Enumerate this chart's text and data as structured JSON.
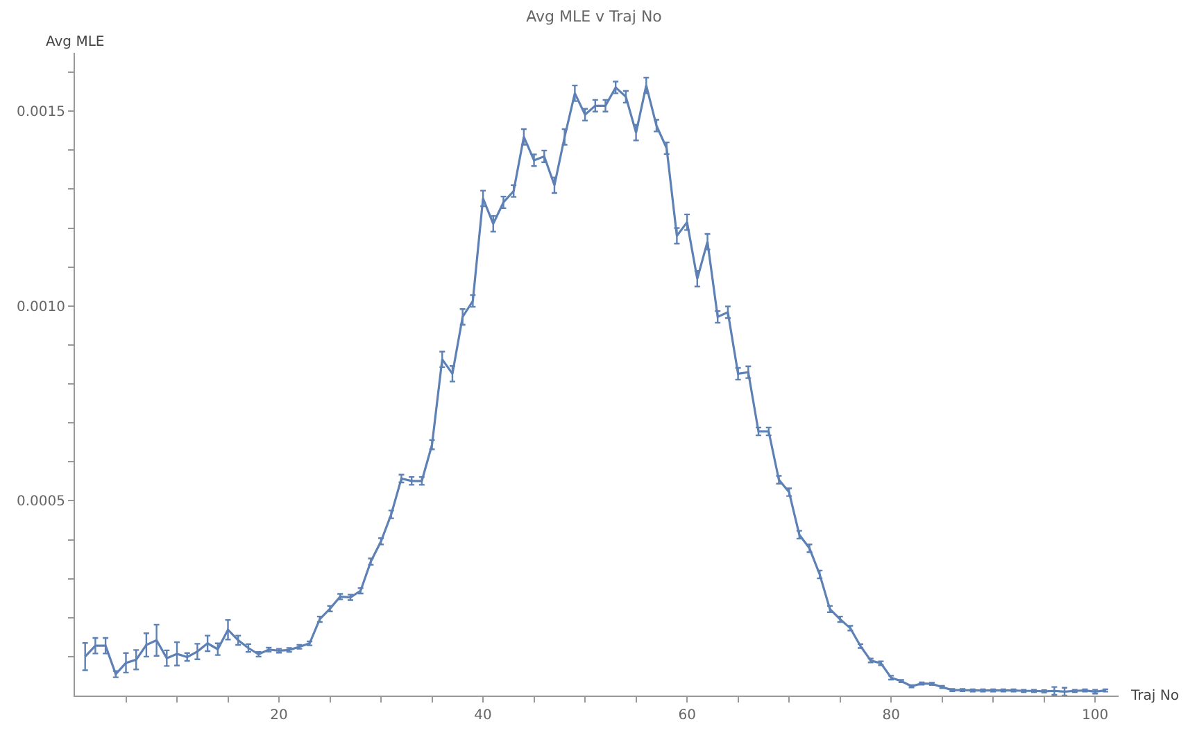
{
  "chart_data": {
    "type": "line",
    "title": "Avg MLE v Traj No",
    "xlabel": "Traj No",
    "ylabel": "Avg MLE",
    "x": [
      1,
      2,
      3,
      4,
      5,
      6,
      7,
      8,
      9,
      10,
      11,
      12,
      13,
      14,
      15,
      16,
      17,
      18,
      19,
      20,
      21,
      22,
      23,
      24,
      25,
      26,
      27,
      28,
      29,
      30,
      31,
      32,
      33,
      34,
      35,
      36,
      37,
      38,
      39,
      40,
      41,
      42,
      43,
      44,
      45,
      46,
      47,
      48,
      49,
      50,
      51,
      52,
      53,
      54,
      55,
      56,
      57,
      58,
      59,
      60,
      61,
      62,
      63,
      64,
      65,
      66,
      67,
      68,
      69,
      70,
      71,
      72,
      73,
      74,
      75,
      76,
      77,
      78,
      79,
      80,
      81,
      82,
      83,
      84,
      85,
      86,
      87,
      88,
      89,
      90,
      91,
      92,
      93,
      94,
      95,
      96,
      97,
      98,
      99,
      100,
      101
    ],
    "series": [
      {
        "color": "#5e81b5",
        "values": [
          0.0001,
          0.000128,
          0.000128,
          5.5e-05,
          8.4e-05,
          9.2e-05,
          0.00013,
          0.000142,
          9.6e-05,
          0.000107,
          9.9e-05,
          0.000113,
          0.000134,
          0.000119,
          0.000169,
          0.000142,
          0.000122,
          0.000106,
          0.000118,
          0.000115,
          0.000117,
          0.000125,
          0.000134,
          0.000196,
          0.000223,
          0.000254,
          0.000252,
          0.000269,
          0.000344,
          0.000396,
          0.000465,
          0.000557,
          0.000551,
          0.000551,
          0.000644,
          0.000863,
          0.000826,
          0.000972,
          0.001013,
          0.001276,
          0.001211,
          0.001266,
          0.001295,
          0.001434,
          0.001374,
          0.001384,
          0.00131,
          0.001434,
          0.001546,
          0.001491,
          0.001514,
          0.001514,
          0.001561,
          0.001537,
          0.001445,
          0.001566,
          0.001463,
          0.001405,
          0.00118,
          0.001215,
          0.00107,
          0.001165,
          0.000972,
          0.000984,
          0.000826,
          0.00083,
          0.000678,
          0.000678,
          0.000554,
          0.000522,
          0.000413,
          0.000378,
          0.000311,
          0.000222,
          0.000196,
          0.000173,
          0.000127,
          9e-05,
          8.3e-05,
          4.6e-05,
          3.7e-05,
          2.4e-05,
          3.1e-05,
          3e-05,
          2.2e-05,
          1.4e-05,
          1.4e-05,
          1.3e-05,
          1.3e-05,
          1.3e-05,
          1.3e-05,
          1.3e-05,
          1.2e-05,
          1.2e-05,
          1.1e-05,
          1.2e-05,
          1e-05,
          1.2e-05,
          1.3e-05,
          1e-05,
          1.3e-05
        ],
        "errors": [
          3.5e-05,
          2e-05,
          2e-05,
          8e-06,
          2.5e-05,
          2.5e-05,
          3e-05,
          4e-05,
          2e-05,
          3e-05,
          1e-05,
          2e-05,
          2e-05,
          1.5e-05,
          2.5e-05,
          1.2e-05,
          1e-05,
          6e-06,
          5e-06,
          5e-06,
          5e-06,
          5e-06,
          5e-06,
          7e-06,
          7e-06,
          7e-06,
          7e-06,
          7e-06,
          8e-06,
          8e-06,
          1e-05,
          1e-05,
          1e-05,
          1e-05,
          1.2e-05,
          2e-05,
          2e-05,
          2e-05,
          1.5e-05,
          2e-05,
          2e-05,
          1.5e-05,
          1.5e-05,
          2e-05,
          1.5e-05,
          1.5e-05,
          2e-05,
          2e-05,
          2e-05,
          1.5e-05,
          1.5e-05,
          1.5e-05,
          1.5e-05,
          1.5e-05,
          2e-05,
          2e-05,
          1.5e-05,
          1.5e-05,
          2e-05,
          2e-05,
          2e-05,
          2e-05,
          1.5e-05,
          1.5e-05,
          1.5e-05,
          1.5e-05,
          1e-05,
          1e-05,
          1e-05,
          1e-05,
          1e-05,
          1e-05,
          1e-05,
          8e-06,
          7e-06,
          6e-06,
          5e-06,
          5e-06,
          5e-06,
          5e-06,
          3e-06,
          3e-06,
          3e-06,
          3e-06,
          3e-06,
          3e-06,
          3e-06,
          3e-06,
          3e-06,
          3e-06,
          3e-06,
          3e-06,
          3e-06,
          3e-06,
          3e-06,
          1e-05,
          1e-05,
          3e-06,
          3e-06,
          5e-06,
          3e-06
        ]
      }
    ],
    "xlim": [
      0,
      102.3
    ],
    "ylim": [
      0,
      0.00165
    ],
    "xticks": [
      {
        "value": 5,
        "label": null
      },
      {
        "value": 10,
        "label": null
      },
      {
        "value": 15,
        "label": null
      },
      20,
      {
        "value": 25,
        "label": null
      },
      {
        "value": 30,
        "label": null
      },
      {
        "value": 35,
        "label": null
      },
      40,
      {
        "value": 45,
        "label": null
      },
      {
        "value": 50,
        "label": null
      },
      {
        "value": 55,
        "label": null
      },
      60,
      {
        "value": 65,
        "label": null
      },
      {
        "value": 70,
        "label": null
      },
      {
        "value": 75,
        "label": null
      },
      80,
      {
        "value": 85,
        "label": null
      },
      {
        "value": 90,
        "label": null
      },
      {
        "value": 95,
        "label": null
      },
      100
    ],
    "yticks": [
      {
        "value": 0.0001,
        "label": null
      },
      {
        "value": 0.0002,
        "label": null
      },
      {
        "value": 0.0003,
        "label": null
      },
      {
        "value": 0.0004,
        "label": null
      },
      {
        "value": 0.0005,
        "label": "0.0005"
      },
      {
        "value": 0.0006,
        "label": null
      },
      {
        "value": 0.0007,
        "label": null
      },
      {
        "value": 0.0008,
        "label": null
      },
      {
        "value": 0.0009,
        "label": null
      },
      {
        "value": 0.001,
        "label": "0.0010"
      },
      {
        "value": 0.0011,
        "label": null
      },
      {
        "value": 0.0012,
        "label": null
      },
      {
        "value": 0.0013,
        "label": null
      },
      {
        "value": 0.0014,
        "label": null
      },
      {
        "value": 0.0015,
        "label": "0.0015"
      },
      {
        "value": 0.0016,
        "label": null
      }
    ],
    "line_style": "solid"
  }
}
